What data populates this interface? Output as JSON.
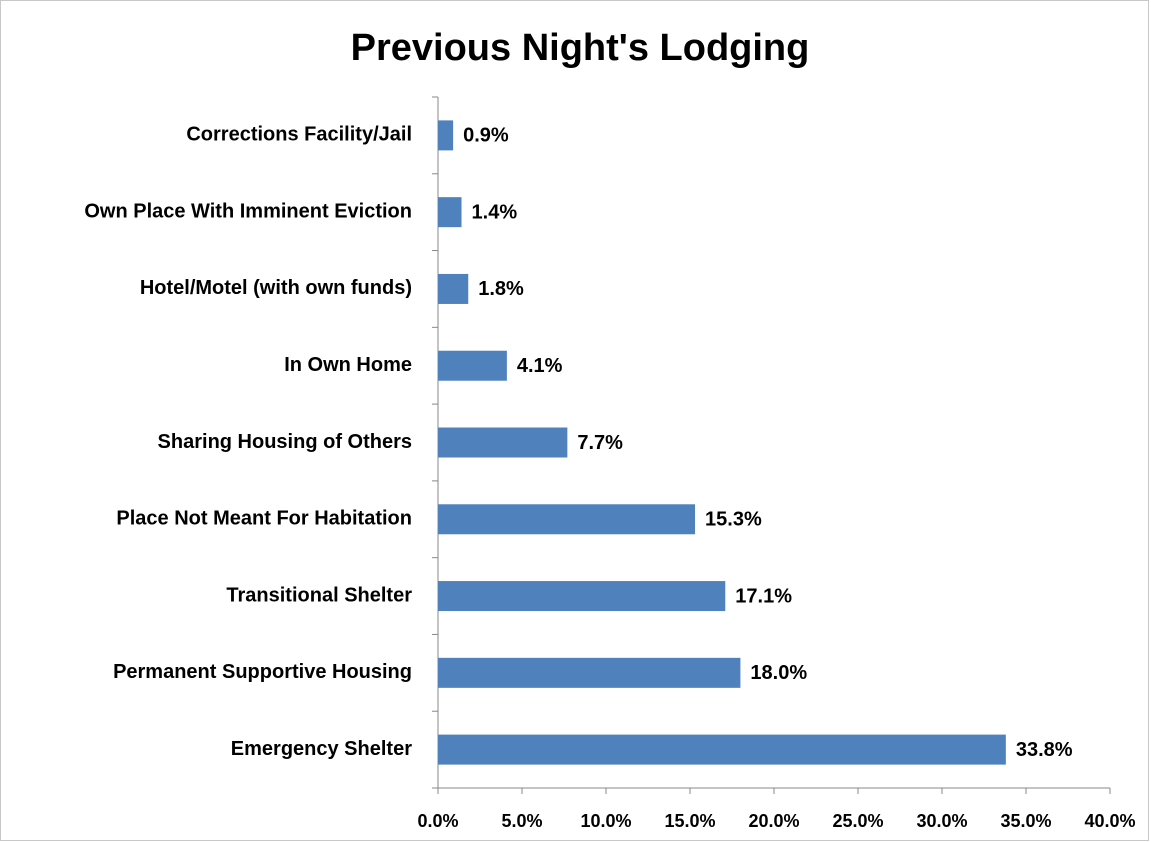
{
  "chart_data": {
    "type": "bar",
    "orientation": "horizontal",
    "title": "Previous Night's Lodging",
    "categories": [
      "Corrections Facility/Jail",
      "Own Place With Imminent Eviction",
      "Hotel/Motel (with own funds)",
      "In Own Home",
      "Sharing Housing of Others",
      "Place Not Meant For Habitation",
      "Transitional Shelter",
      "Permanent Supportive Housing",
      "Emergency Shelter"
    ],
    "values": [
      0.9,
      1.4,
      1.8,
      4.1,
      7.7,
      15.3,
      17.1,
      18.0,
      33.8
    ],
    "value_labels": [
      "0.9%",
      "1.4%",
      "1.8%",
      "4.1%",
      "7.7%",
      "15.3%",
      "17.1%",
      "18.0%",
      "33.8%"
    ],
    "color": "#4f81bd",
    "xlim": [
      0,
      40
    ],
    "xticks": [
      {
        "value": 0,
        "label": "0.0%"
      },
      {
        "value": 5,
        "label": "5.0%"
      },
      {
        "value": 10,
        "label": "10.0%"
      },
      {
        "value": 15,
        "label": "15.0%"
      },
      {
        "value": 20,
        "label": "20.0%"
      },
      {
        "value": 25,
        "label": "25.0%"
      },
      {
        "value": 30,
        "label": "30.0%"
      },
      {
        "value": 35,
        "label": "35.0%"
      },
      {
        "value": 40,
        "label": "40.0%"
      }
    ],
    "grid": false
  }
}
